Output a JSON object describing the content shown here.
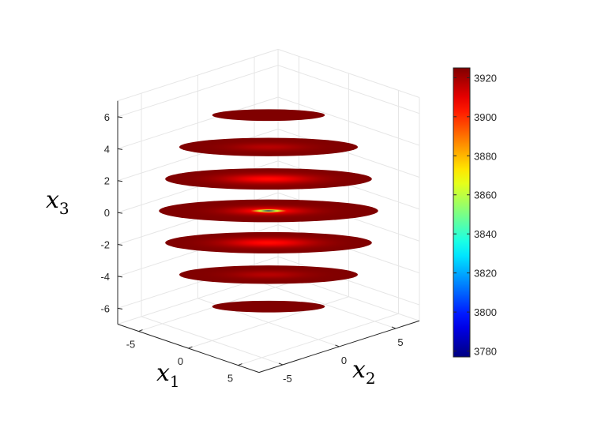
{
  "chart_data": {
    "type": "3d-disk-stack",
    "xlabel": "x",
    "xlabel_sub": "1",
    "ylabel": "x",
    "ylabel_sub": "2",
    "zlabel": "x",
    "zlabel_sub": "3",
    "x_ticks": [
      "-5",
      "0",
      "5"
    ],
    "y_ticks": [
      "-5",
      "0",
      "5"
    ],
    "z_ticks": [
      "6",
      "4",
      "2",
      "0",
      "-2",
      "-4",
      "-6"
    ],
    "z_tick_values": [
      6,
      4,
      2,
      0,
      -2,
      -4,
      -6
    ],
    "xlim": [
      -7,
      7
    ],
    "ylim": [
      -7,
      7
    ],
    "zlim": [
      -7,
      7
    ],
    "grid": true,
    "colormap": "jet",
    "colorbar": {
      "ticks": [
        "3920",
        "3900",
        "3880",
        "3860",
        "3840",
        "3820",
        "3800",
        "3780"
      ],
      "tick_values": [
        3920,
        3900,
        3880,
        3860,
        3840,
        3820,
        3800,
        3780
      ],
      "range": [
        3777,
        3925
      ]
    },
    "slices": [
      {
        "z": 6,
        "radius": 3.6,
        "center_value": 3925,
        "edge_value": 3925
      },
      {
        "z": 4,
        "radius": 5.7,
        "center_value": 3917,
        "edge_value": 3925
      },
      {
        "z": 2,
        "radius": 6.6,
        "center_value": 3905,
        "edge_value": 3925
      },
      {
        "z": 0,
        "radius": 7.0,
        "center_value": 3777,
        "edge_value": 3925
      },
      {
        "z": -2,
        "radius": 6.6,
        "center_value": 3905,
        "edge_value": 3925
      },
      {
        "z": -4,
        "radius": 5.7,
        "center_value": 3917,
        "edge_value": 3925
      },
      {
        "z": -6,
        "radius": 3.6,
        "center_value": 3925,
        "edge_value": 3925
      }
    ]
  }
}
